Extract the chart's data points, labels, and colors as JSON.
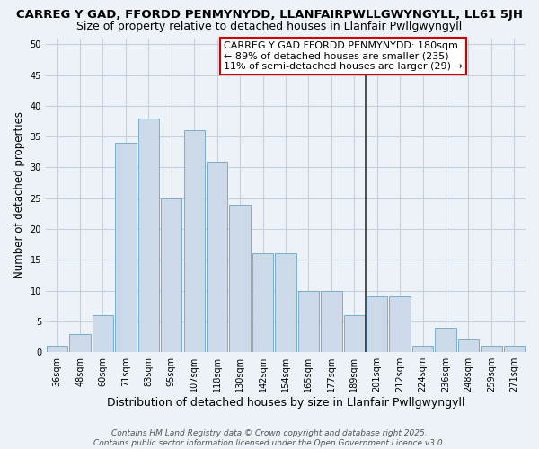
{
  "title": "CARREG Y GAD, FFORDD PENMYNYDD, LLANFAIRPWLLGWYNGYLL, LL61 5JH",
  "subtitle": "Size of property relative to detached houses in Llanfair Pwllgwyngyll",
  "xlabel": "Distribution of detached houses by size in Llanfair Pwllgwyngyll",
  "ylabel": "Number of detached properties",
  "footer": "Contains HM Land Registry data © Crown copyright and database right 2025.\nContains public sector information licensed under the Open Government Licence v3.0.",
  "categories": [
    "36sqm",
    "48sqm",
    "60sqm",
    "71sqm",
    "83sqm",
    "95sqm",
    "107sqm",
    "118sqm",
    "130sqm",
    "142sqm",
    "154sqm",
    "165sqm",
    "177sqm",
    "189sqm",
    "201sqm",
    "212sqm",
    "224sqm",
    "236sqm",
    "248sqm",
    "259sqm",
    "271sqm"
  ],
  "values": [
    1,
    3,
    6,
    34,
    38,
    25,
    36,
    31,
    24,
    16,
    16,
    10,
    10,
    6,
    9,
    9,
    1,
    4,
    2,
    1,
    1
  ],
  "bar_color": "#ccd9e8",
  "bar_edge_color": "#7aadcc",
  "grid_color": "#c5d0dc",
  "background_color": "#edf2f8",
  "vline_x": 13.5,
  "vline_color": "#333333",
  "annotation_text": "CARREG Y GAD FFORDD PENMYNYDD: 180sqm\n← 89% of detached houses are smaller (235)\n11% of semi-detached houses are larger (29) →",
  "annotation_box_color": "#ffffff",
  "annotation_box_edge": "#cc0000",
  "ylim": [
    0,
    51
  ],
  "yticks": [
    0,
    5,
    10,
    15,
    20,
    25,
    30,
    35,
    40,
    45,
    50
  ],
  "title_fontsize": 9.5,
  "subtitle_fontsize": 9,
  "xlabel_fontsize": 9,
  "ylabel_fontsize": 8.5,
  "tick_fontsize": 7,
  "annotation_fontsize": 8,
  "footer_fontsize": 6.5
}
